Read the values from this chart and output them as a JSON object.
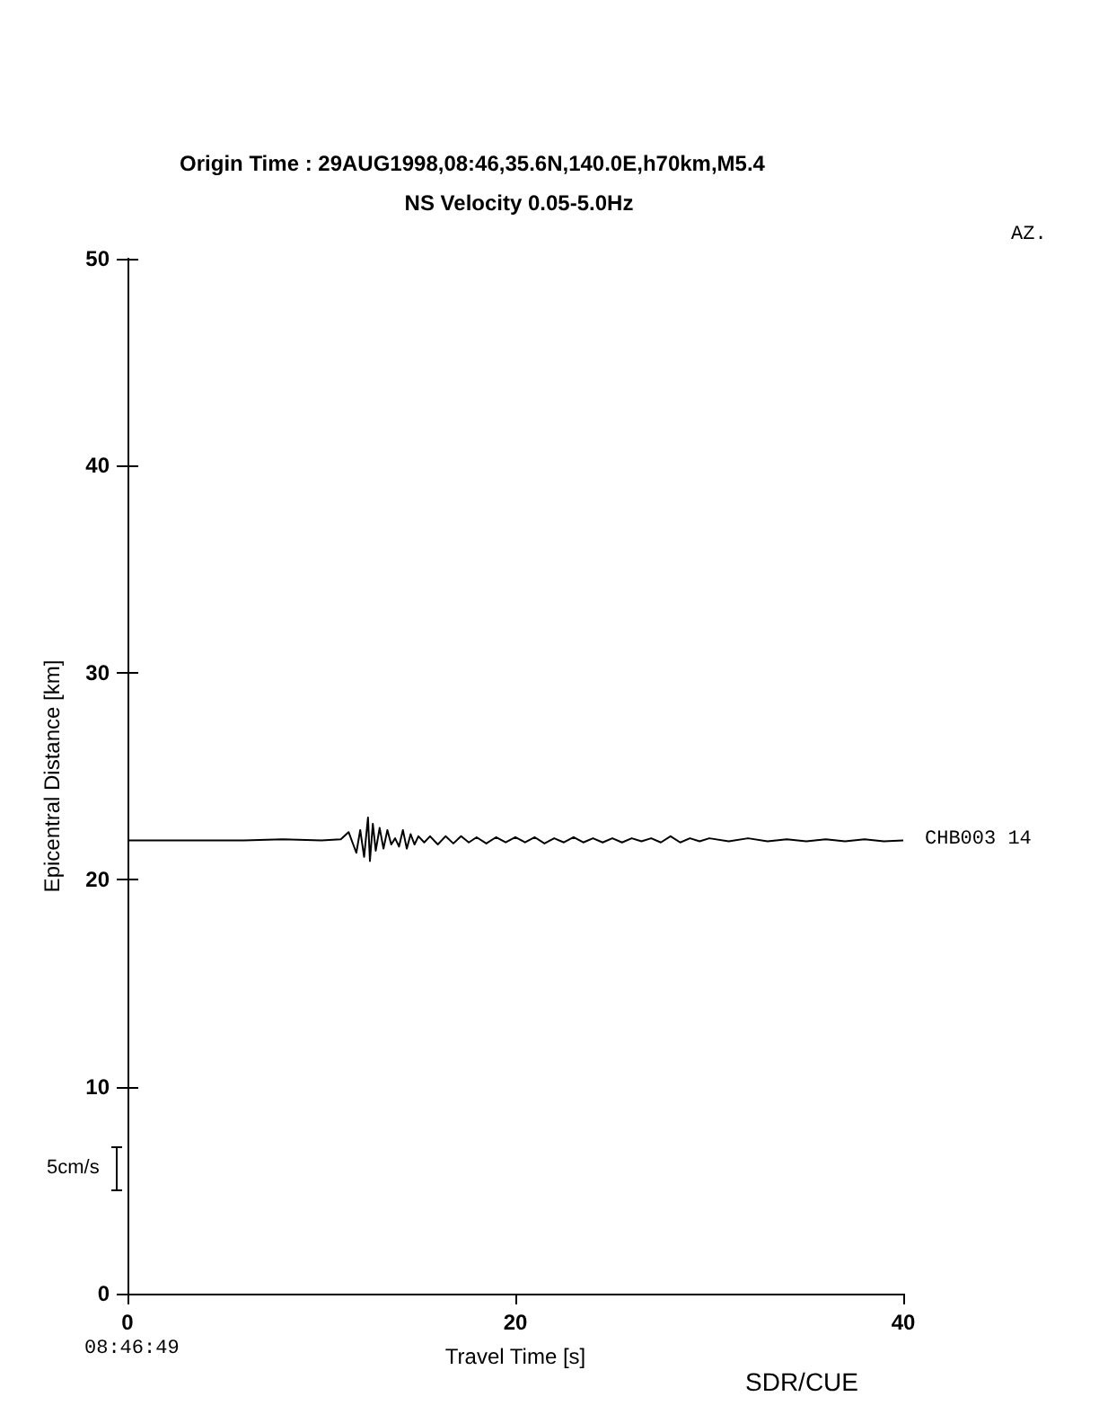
{
  "chart_data": {
    "type": "line",
    "title": "Origin Time : 29AUG1998,08:46,35.6N,140.0E,h70km,M5.4",
    "subtitle": "NS Velocity 0.05-5.0Hz",
    "xlabel": "Travel Time [s]",
    "ylabel": "Epicentral Distance [km]",
    "xlim": [
      0,
      40
    ],
    "xticks": [
      0,
      20,
      40
    ],
    "ylim": [
      0,
      50
    ],
    "yticks": [
      0,
      10,
      20,
      30,
      40,
      50
    ],
    "grid": false,
    "legend": false,
    "marker": "none",
    "line_style": "solid",
    "annotations": [
      "AZ.",
      "5cm/s",
      "08:46:49",
      "SDR/CUE"
    ],
    "series": [
      {
        "name": "CHB003 14",
        "color": "#000000",
        "x": [
          0,
          6,
          8,
          10,
          11,
          11.4,
          11.6,
          11.8,
          12,
          12.2,
          12.4,
          12.5,
          12.65,
          12.8,
          13,
          13.2,
          13.4,
          13.6,
          13.8,
          14,
          14.2,
          14.4,
          14.6,
          14.8,
          15,
          15.3,
          15.6,
          16,
          16.4,
          16.8,
          17.2,
          17.6,
          18,
          18.5,
          19,
          19.5,
          20,
          20.5,
          21,
          21.5,
          22,
          22.5,
          23,
          23.5,
          24,
          24.5,
          25,
          25.5,
          26,
          26.5,
          27,
          27.5,
          28,
          28.5,
          29,
          29.5,
          30,
          31,
          32,
          33,
          34,
          35,
          36,
          37,
          38,
          39,
          40
        ],
        "values": [
          21.9,
          21.9,
          21.95,
          21.9,
          21.95,
          22.3,
          21.8,
          21.3,
          22.4,
          21.1,
          23.0,
          20.9,
          22.7,
          21.4,
          22.5,
          21.5,
          22.4,
          21.7,
          22.0,
          21.6,
          22.4,
          21.5,
          22.2,
          21.7,
          22.1,
          21.8,
          22.1,
          21.7,
          22.1,
          21.75,
          22.1,
          21.8,
          22.05,
          21.75,
          22.05,
          21.8,
          22.05,
          21.8,
          22.05,
          21.75,
          22.0,
          21.8,
          22.05,
          21.8,
          22.0,
          21.8,
          22.0,
          21.8,
          22.0,
          21.85,
          22.0,
          21.8,
          22.1,
          21.8,
          22.0,
          21.85,
          22.0,
          21.85,
          22.0,
          21.85,
          21.95,
          21.85,
          21.95,
          21.85,
          21.95,
          21.85,
          21.9
        ]
      }
    ]
  }
}
